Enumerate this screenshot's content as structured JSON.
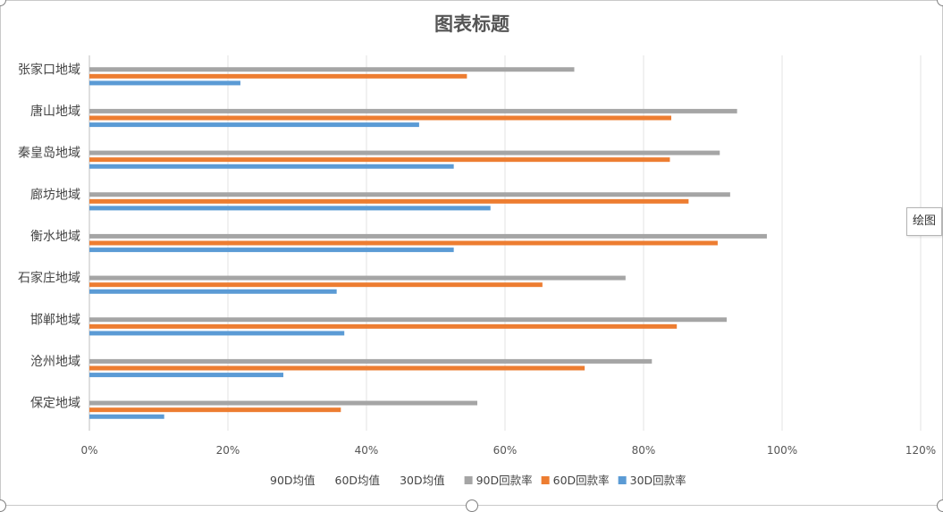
{
  "tooltip": {
    "text": "绘图"
  },
  "chart_data": {
    "type": "bar",
    "orientation": "horizontal",
    "title": "图表标题",
    "categories": [
      "张家口地域",
      "唐山地域",
      "秦皇岛地域",
      "廊坊地域",
      "衡水地域",
      "石家庄地域",
      "邯郸地域",
      "沧州地域",
      "保定地域"
    ],
    "series": [
      {
        "name": "90D回款率",
        "color": "#a5a5a5",
        "values": [
          0.7,
          0.935,
          0.91,
          0.925,
          0.978,
          0.774,
          0.92,
          0.812,
          0.56
        ]
      },
      {
        "name": "60D回款率",
        "color": "#ed7d31",
        "values": [
          0.545,
          0.84,
          0.838,
          0.865,
          0.907,
          0.654,
          0.848,
          0.715,
          0.363
        ]
      },
      {
        "name": "30D回款率",
        "color": "#5b9bd5",
        "values": [
          0.218,
          0.476,
          0.526,
          0.579,
          0.526,
          0.357,
          0.368,
          0.28,
          0.108
        ]
      }
    ],
    "legend": {
      "placement": "bottom",
      "entries": [
        "90D均值",
        "60D均值",
        "30D均值",
        "90D回款率",
        "60D回款率",
        "30D回款率"
      ]
    },
    "xlim": [
      0,
      1.2
    ],
    "xticks": [
      0,
      0.2,
      0.4,
      0.6,
      0.8,
      1.0,
      1.2
    ],
    "xtick_labels": [
      "0%",
      "20%",
      "40%",
      "60%",
      "80%",
      "100%",
      "120%"
    ],
    "grid": true
  }
}
